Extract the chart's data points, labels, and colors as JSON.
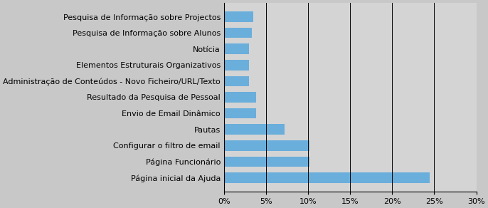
{
  "categories": [
    "Pesquisa de Informação sobre Projectos",
    "Pesquisa de Informação sobre Alunos",
    "Notícia",
    "Elementos Estruturais Organizativos",
    "Administração de Conteúdos - Novo Ficheiro/URL/Texto",
    "Resultado da Pesquisa de Pessoal",
    "Envio de Email Dinâmico",
    "Pautas",
    "Configurar o filtro de email",
    "Página Funcionário",
    "Página inicial da Ajuda"
  ],
  "values": [
    0.035,
    0.033,
    0.03,
    0.03,
    0.03,
    0.038,
    0.038,
    0.072,
    0.102,
    0.102,
    0.245
  ],
  "bar_color": "#6aaedb",
  "background_color": "#c8c8c8",
  "plot_bg_color": "#d4d4d4",
  "xlim": [
    0,
    0.3
  ],
  "xticks": [
    0.0,
    0.05,
    0.1,
    0.15,
    0.2,
    0.25,
    0.3
  ],
  "tick_fontsize": 8.0,
  "label_fontsize": 8.0
}
